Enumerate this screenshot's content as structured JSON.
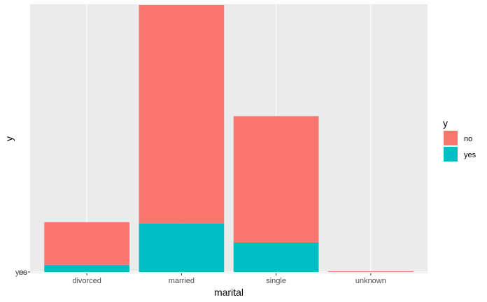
{
  "chart_data": {
    "type": "bar",
    "stacked": true,
    "categories": [
      "divorced",
      "married",
      "single",
      "unknown"
    ],
    "series": [
      {
        "name": "no",
        "values": [
          136,
          699,
          404,
          2
        ],
        "color": "#F8766D"
      },
      {
        "name": "yes",
        "values": [
          23,
          155,
          94,
          0
        ],
        "color": "#00BFC4"
      }
    ],
    "xlabel": "marital",
    "ylabel": "y",
    "y_tick_labels": [
      "no",
      "yes"
    ],
    "legend": {
      "title": "y",
      "placement": "right",
      "entries": [
        "no",
        "yes"
      ]
    },
    "grid": true,
    "panel_color": "#EBEBEB"
  }
}
